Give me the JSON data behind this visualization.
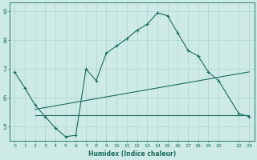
{
  "xlabel": "Humidex (Indice chaleur)",
  "bg_color": "#ceeae6",
  "grid_color": "#aed4d0",
  "line_color": "#1a6b5a",
  "line1_x": [
    0,
    1,
    2,
    3,
    4,
    5,
    6,
    7,
    8,
    9,
    10,
    11,
    12,
    13,
    14,
    15,
    16,
    17,
    18,
    19,
    20,
    22,
    23
  ],
  "line1_y": [
    6.9,
    6.35,
    5.75,
    5.35,
    4.95,
    4.65,
    4.7,
    7.0,
    6.6,
    7.55,
    7.8,
    8.05,
    8.35,
    8.55,
    8.95,
    8.85,
    8.25,
    7.65,
    7.45,
    6.9,
    6.6,
    5.45,
    5.35
  ],
  "line2_x": [
    2,
    23
  ],
  "line2_y": [
    5.4,
    5.4
  ],
  "line3_x": [
    2,
    23
  ],
  "line3_y": [
    5.6,
    6.9
  ],
  "ylim": [
    4.5,
    9.3
  ],
  "yticks": [
    5,
    6,
    7,
    8,
    9
  ],
  "xlim": [
    -0.5,
    23.5
  ],
  "xticks": [
    0,
    1,
    2,
    3,
    4,
    5,
    6,
    7,
    8,
    9,
    10,
    11,
    12,
    13,
    14,
    15,
    16,
    17,
    18,
    19,
    20,
    22,
    23
  ],
  "xtick_labels": [
    "0",
    "1",
    "2",
    "3",
    "4",
    "5",
    "6",
    "7",
    "8",
    "9",
    "10",
    "11",
    "12",
    "13",
    "14",
    "15",
    "16",
    "17",
    "18",
    "19",
    "20",
    "22",
    "23"
  ]
}
